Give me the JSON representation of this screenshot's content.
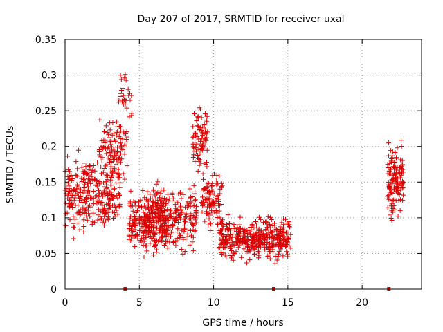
{
  "chart_data": {
    "type": "scatter",
    "title": "Day 207 of 2017, SRMTID for receiver uxal",
    "xlabel": "GPS time / hours",
    "ylabel": "SRMTID / TECUs",
    "xlim": [
      0,
      24
    ],
    "ylim": [
      0,
      0.35
    ],
    "xticks": [
      0,
      5,
      10,
      15,
      20
    ],
    "xtick_labels": [
      "0",
      "5",
      "10",
      "15",
      "20"
    ],
    "yticks": [
      0,
      0.05,
      0.1,
      0.15,
      0.2,
      0.25,
      0.3,
      0.35
    ],
    "ytick_labels": [
      "0",
      "0.05",
      "0.1",
      "0.15",
      "0.2",
      "0.25",
      "0.3",
      "0.35"
    ],
    "grid": true,
    "marker": "+",
    "color": "#dd0000",
    "baseline_markers_x": [
      4.05,
      14.05,
      21.8
    ],
    "clusters": [
      {
        "x_start": 0.0,
        "x_end": 3.7,
        "center": 0.135,
        "spread": 0.07,
        "count": 320
      },
      {
        "x_start": 2.3,
        "x_end": 4.3,
        "center": 0.19,
        "spread": 0.06,
        "count": 110
      },
      {
        "x_start": 3.6,
        "x_end": 4.5,
        "center": 0.27,
        "spread": 0.035,
        "count": 28
      },
      {
        "x_start": 4.3,
        "x_end": 7.0,
        "center": 0.095,
        "spread": 0.055,
        "count": 260
      },
      {
        "x_start": 5.3,
        "x_end": 8.9,
        "center": 0.1,
        "spread": 0.06,
        "count": 250
      },
      {
        "x_start": 8.6,
        "x_end": 9.6,
        "center": 0.21,
        "spread": 0.06,
        "count": 90
      },
      {
        "x_start": 9.2,
        "x_end": 10.6,
        "center": 0.125,
        "spread": 0.055,
        "count": 110
      },
      {
        "x_start": 10.3,
        "x_end": 15.2,
        "center": 0.07,
        "spread": 0.04,
        "count": 430
      },
      {
        "x_start": 21.7,
        "x_end": 22.8,
        "center": 0.15,
        "spread": 0.07,
        "count": 140
      }
    ]
  }
}
